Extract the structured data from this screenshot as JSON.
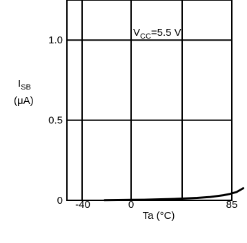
{
  "chart_data": {
    "type": "line",
    "title": "",
    "xlabel": "Ta",
    "xlabel_unit": "(°C)",
    "ylabel": "I",
    "ylabel_sub": "SB",
    "ylabel_unit": "(μA)",
    "annotation": {
      "main": "V",
      "sub": "CC",
      "rest": "=5.5 V"
    },
    "xlim": [
      -40,
      85
    ],
    "ylim": [
      0,
      1.25
    ],
    "grid": true,
    "x_ticks": [
      {
        "value": -40,
        "label": "-40"
      },
      {
        "value": 0,
        "label": "0"
      },
      {
        "value": 85,
        "label": "85"
      }
    ],
    "y_ticks": [
      {
        "value": 0,
        "label": "0"
      },
      {
        "value": 0.5,
        "label": "0.5"
      },
      {
        "value": 1.0,
        "label": "1.0"
      }
    ],
    "series": [
      {
        "x": [
          -20,
          -10,
          0,
          10,
          20,
          30,
          40,
          50,
          60,
          70,
          75,
          80,
          85
        ],
        "y": [
          0.001,
          0.002,
          0.003,
          0.004,
          0.006,
          0.008,
          0.011,
          0.015,
          0.021,
          0.032,
          0.04,
          0.052,
          0.075
        ]
      }
    ],
    "line_color": "#000000"
  }
}
